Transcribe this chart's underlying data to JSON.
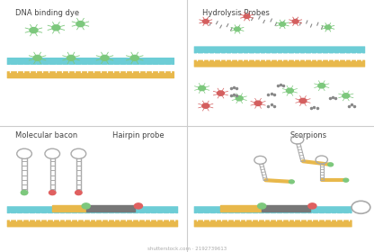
{
  "bg_color": "#ffffff",
  "border_color": "#cccccc",
  "titles": {
    "top_left": "DNA binding dye",
    "top_right": "Hydrolysis Probes",
    "bottom_left": "Molecular bacon",
    "bottom_middle": "Hairpin probe",
    "bottom_right": "Scorpions"
  },
  "colors": {
    "dna_blue": "#6dcdd6",
    "dna_yellow": "#e8b84b",
    "dna_dark": "#888888",
    "dye_green": "#7dc87d",
    "probe_red": "#d45f5f",
    "stem_gray": "#aaaaaa",
    "dark_segment": "#777777",
    "quencher_dark": "#888888",
    "reporter_green": "#7dc87d",
    "reporter_red": "#e06060"
  },
  "title_fontsize": 6.0,
  "watermark": "shutterstock.com · 2192739613"
}
